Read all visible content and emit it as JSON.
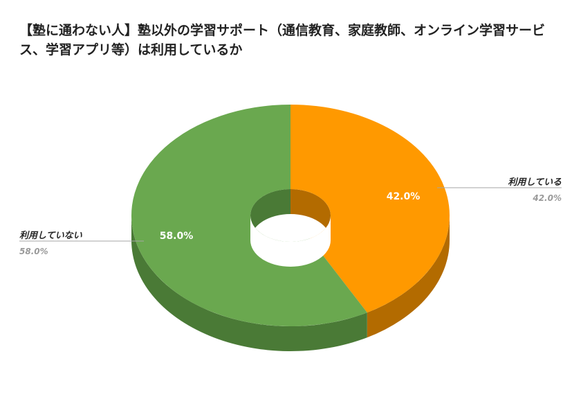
{
  "chart_data": {
    "type": "pie",
    "variant": "3d-doughnut",
    "title": "【塾に通わない人】塾以外の学習サポート（通信教育、家庭教師、オンライン学習サービス、学習アプリ等）は利用しているか",
    "categories": [
      "利用している",
      "利用していない"
    ],
    "values": [
      42.0,
      58.0
    ],
    "value_labels": [
      "42.0%",
      "58.0%"
    ],
    "colors": [
      "#FF9900",
      "#6AA84F"
    ],
    "side_colors": [
      "#B36B00",
      "#4A7A36"
    ],
    "legend": "none",
    "data_labels": "outside callouts with category and percent, plus percent inside slice"
  }
}
